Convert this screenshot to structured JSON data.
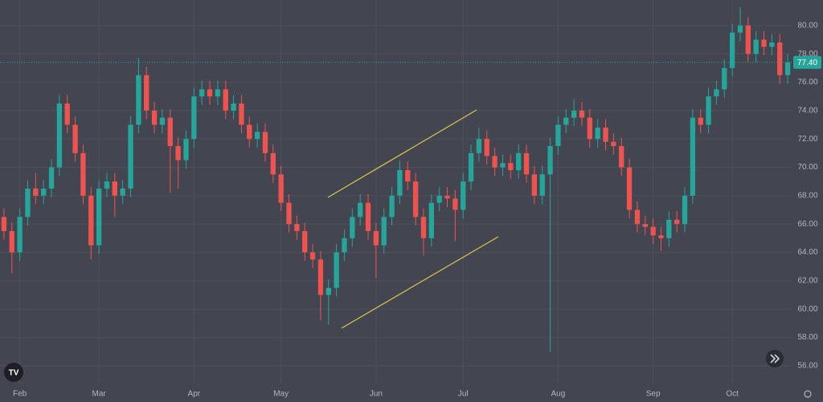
{
  "chart_data": {
    "type": "candlestick",
    "categories": [
      null,
      null,
      "Feb",
      null,
      null,
      null,
      null,
      null,
      null,
      null,
      null,
      null,
      "Mar",
      null,
      null,
      null,
      null,
      null,
      null,
      null,
      null,
      null,
      null,
      null,
      "Apr",
      null,
      null,
      null,
      null,
      null,
      null,
      null,
      null,
      null,
      null,
      "May",
      null,
      null,
      null,
      null,
      null,
      null,
      null,
      null,
      null,
      null,
      null,
      "Jun",
      null,
      null,
      null,
      null,
      null,
      null,
      null,
      null,
      null,
      null,
      "Jul",
      null,
      null,
      null,
      null,
      null,
      null,
      null,
      null,
      null,
      null,
      null,
      "Aug",
      null,
      null,
      null,
      null,
      null,
      null,
      null,
      null,
      null,
      null,
      null,
      "Sep",
      null,
      null,
      null,
      null,
      null,
      null,
      null,
      null,
      null,
      "Oct",
      null,
      null,
      null,
      null,
      null,
      null,
      null
    ],
    "open": [
      66.5,
      65.5,
      64,
      66.5,
      68.5,
      68,
      68.5,
      70,
      74.5,
      73,
      71,
      68,
      64.5,
      68.5,
      69,
      68,
      68.5,
      73,
      76.5,
      74,
      73,
      73.5,
      71.5,
      70.5,
      72,
      75,
      75.5,
      75,
      75.5,
      74,
      74.5,
      73,
      72,
      72.5,
      71,
      69.5,
      67.5,
      66,
      65.5,
      64,
      63.5,
      61,
      61.5,
      64,
      65,
      66.5,
      67.5,
      65.5,
      64.5,
      66.5,
      68,
      69.8,
      69,
      66.5,
      65,
      67.5,
      68,
      67.8,
      67,
      69,
      71,
      72,
      70.8,
      70,
      70.3,
      69.8,
      71,
      69.5,
      68,
      69.5,
      71.5,
      73,
      73.5,
      74,
      73.5,
      72,
      72.8,
      71.8,
      71.5,
      70,
      67,
      66,
      65.8,
      65.2,
      65,
      66.3,
      66,
      68,
      73.5,
      73,
      75,
      75.5,
      77,
      79.5,
      80,
      78,
      79,
      78.5,
      78.8,
      76.5
    ],
    "high": [
      67.1,
      66.1,
      67.1,
      69.1,
      69.6,
      69.1,
      70.6,
      75.1,
      75.1,
      73.6,
      71.6,
      68.6,
      69.1,
      69.6,
      69.6,
      69.1,
      73.6,
      77.7,
      77.1,
      74.6,
      74.1,
      74.1,
      72.1,
      72.6,
      75.6,
      76.1,
      76.1,
      76.1,
      76.1,
      75.1,
      75.1,
      73.6,
      73.1,
      73.1,
      71.6,
      70.1,
      68.1,
      66.6,
      66.1,
      64.6,
      64.1,
      62.1,
      64.6,
      65.6,
      67.1,
      68.1,
      68.1,
      66.1,
      67.1,
      68.6,
      70.5,
      70.4,
      69.6,
      67.1,
      68.1,
      68.6,
      68.6,
      68.4,
      69.6,
      71.6,
      72.8,
      72.6,
      71.4,
      70.9,
      70.9,
      71.6,
      71.6,
      70.1,
      70.1,
      72.1,
      73.6,
      74.1,
      74.8,
      74.6,
      74.1,
      73.4,
      73.4,
      72.4,
      72.1,
      70.6,
      67.6,
      66.6,
      66.4,
      65.8,
      66.9,
      66.9,
      68.6,
      74.1,
      74.1,
      75.6,
      76.1,
      77.6,
      80.1,
      81.3,
      80.6,
      79.6,
      79.6,
      79.4,
      79.4,
      78.0
    ],
    "low": [
      64.9,
      62.5,
      63.4,
      65.9,
      67.4,
      67.4,
      67.9,
      69.4,
      72.4,
      70.4,
      67.4,
      63.5,
      63.9,
      67.9,
      66.5,
      67.4,
      67.9,
      72.4,
      73.4,
      72.4,
      72.4,
      68.2,
      68.5,
      69.9,
      71.4,
      74.4,
      74.4,
      74.4,
      73.4,
      73.4,
      72.4,
      71.4,
      71.4,
      70.4,
      68.9,
      66.9,
      65.4,
      64.9,
      63.4,
      62.9,
      59.2,
      58.9,
      60.9,
      63.4,
      64.4,
      65.9,
      64.9,
      62.2,
      63.9,
      65.9,
      67.4,
      68.4,
      65.9,
      63.8,
      64.4,
      66.9,
      67.2,
      64.8,
      66.4,
      68.4,
      70.4,
      70.2,
      69.4,
      69.4,
      69.2,
      69.2,
      68.9,
      67.4,
      67.4,
      57,
      70.9,
      72.4,
      72.9,
      72.9,
      71.4,
      71.4,
      71.2,
      70.9,
      69.4,
      66.4,
      65.4,
      65.2,
      64.6,
      64.1,
      64.4,
      65.4,
      65.4,
      67.4,
      72.4,
      72.4,
      74.4,
      74.9,
      76.4,
      78.9,
      77.4,
      77.4,
      77.9,
      77.9,
      75.9,
      75.9
    ],
    "close": [
      65.5,
      64,
      66.5,
      68.5,
      68,
      68.5,
      70,
      74.5,
      73,
      71,
      68,
      64.5,
      68.5,
      69,
      68,
      68.5,
      73,
      76.5,
      74,
      73,
      73.5,
      71.5,
      70.5,
      72,
      75,
      75.5,
      75,
      75.5,
      74,
      74.5,
      73,
      72,
      72.5,
      71,
      69.5,
      67.5,
      66,
      65.5,
      64,
      63.5,
      61,
      61.5,
      64,
      65,
      66.5,
      67.5,
      65.5,
      64.5,
      66.5,
      68,
      69.8,
      69,
      66.5,
      65,
      67.5,
      68,
      67.8,
      67,
      69,
      71,
      72,
      70.8,
      70,
      70.3,
      69.8,
      71,
      69.5,
      68,
      69.5,
      71.5,
      73,
      73.5,
      74,
      73.5,
      72,
      72.8,
      71.8,
      71.5,
      70,
      67,
      66,
      65.8,
      65.2,
      65,
      66.3,
      66,
      68,
      73.5,
      73,
      75,
      75.5,
      77,
      79.5,
      80,
      78,
      79,
      78.5,
      78.8,
      76.5,
      77.4
    ],
    "up_color": "#26a69a",
    "down_color": "#ef5350",
    "ylim": [
      54.75,
      81.8
    ],
    "yticks": [
      {
        "value": 56,
        "label": "56.00"
      },
      {
        "value": 58,
        "label": "58.00"
      },
      {
        "value": 60,
        "label": "60.00"
      },
      {
        "value": 62,
        "label": "62.00"
      },
      {
        "value": 64,
        "label": "64.00"
      },
      {
        "value": 66,
        "label": "66.00"
      },
      {
        "value": 68,
        "label": "68.00"
      },
      {
        "value": 70,
        "label": "70.00"
      },
      {
        "value": 72,
        "label": "72.00"
      },
      {
        "value": 74,
        "label": "74.00"
      },
      {
        "value": 76,
        "label": "76.00"
      },
      {
        "value": 78,
        "label": "78.00"
      },
      {
        "value": 80,
        "label": "80.00"
      }
    ],
    "last_price": {
      "value": 77.4,
      "label": "77.40"
    },
    "grid": true
  }
}
